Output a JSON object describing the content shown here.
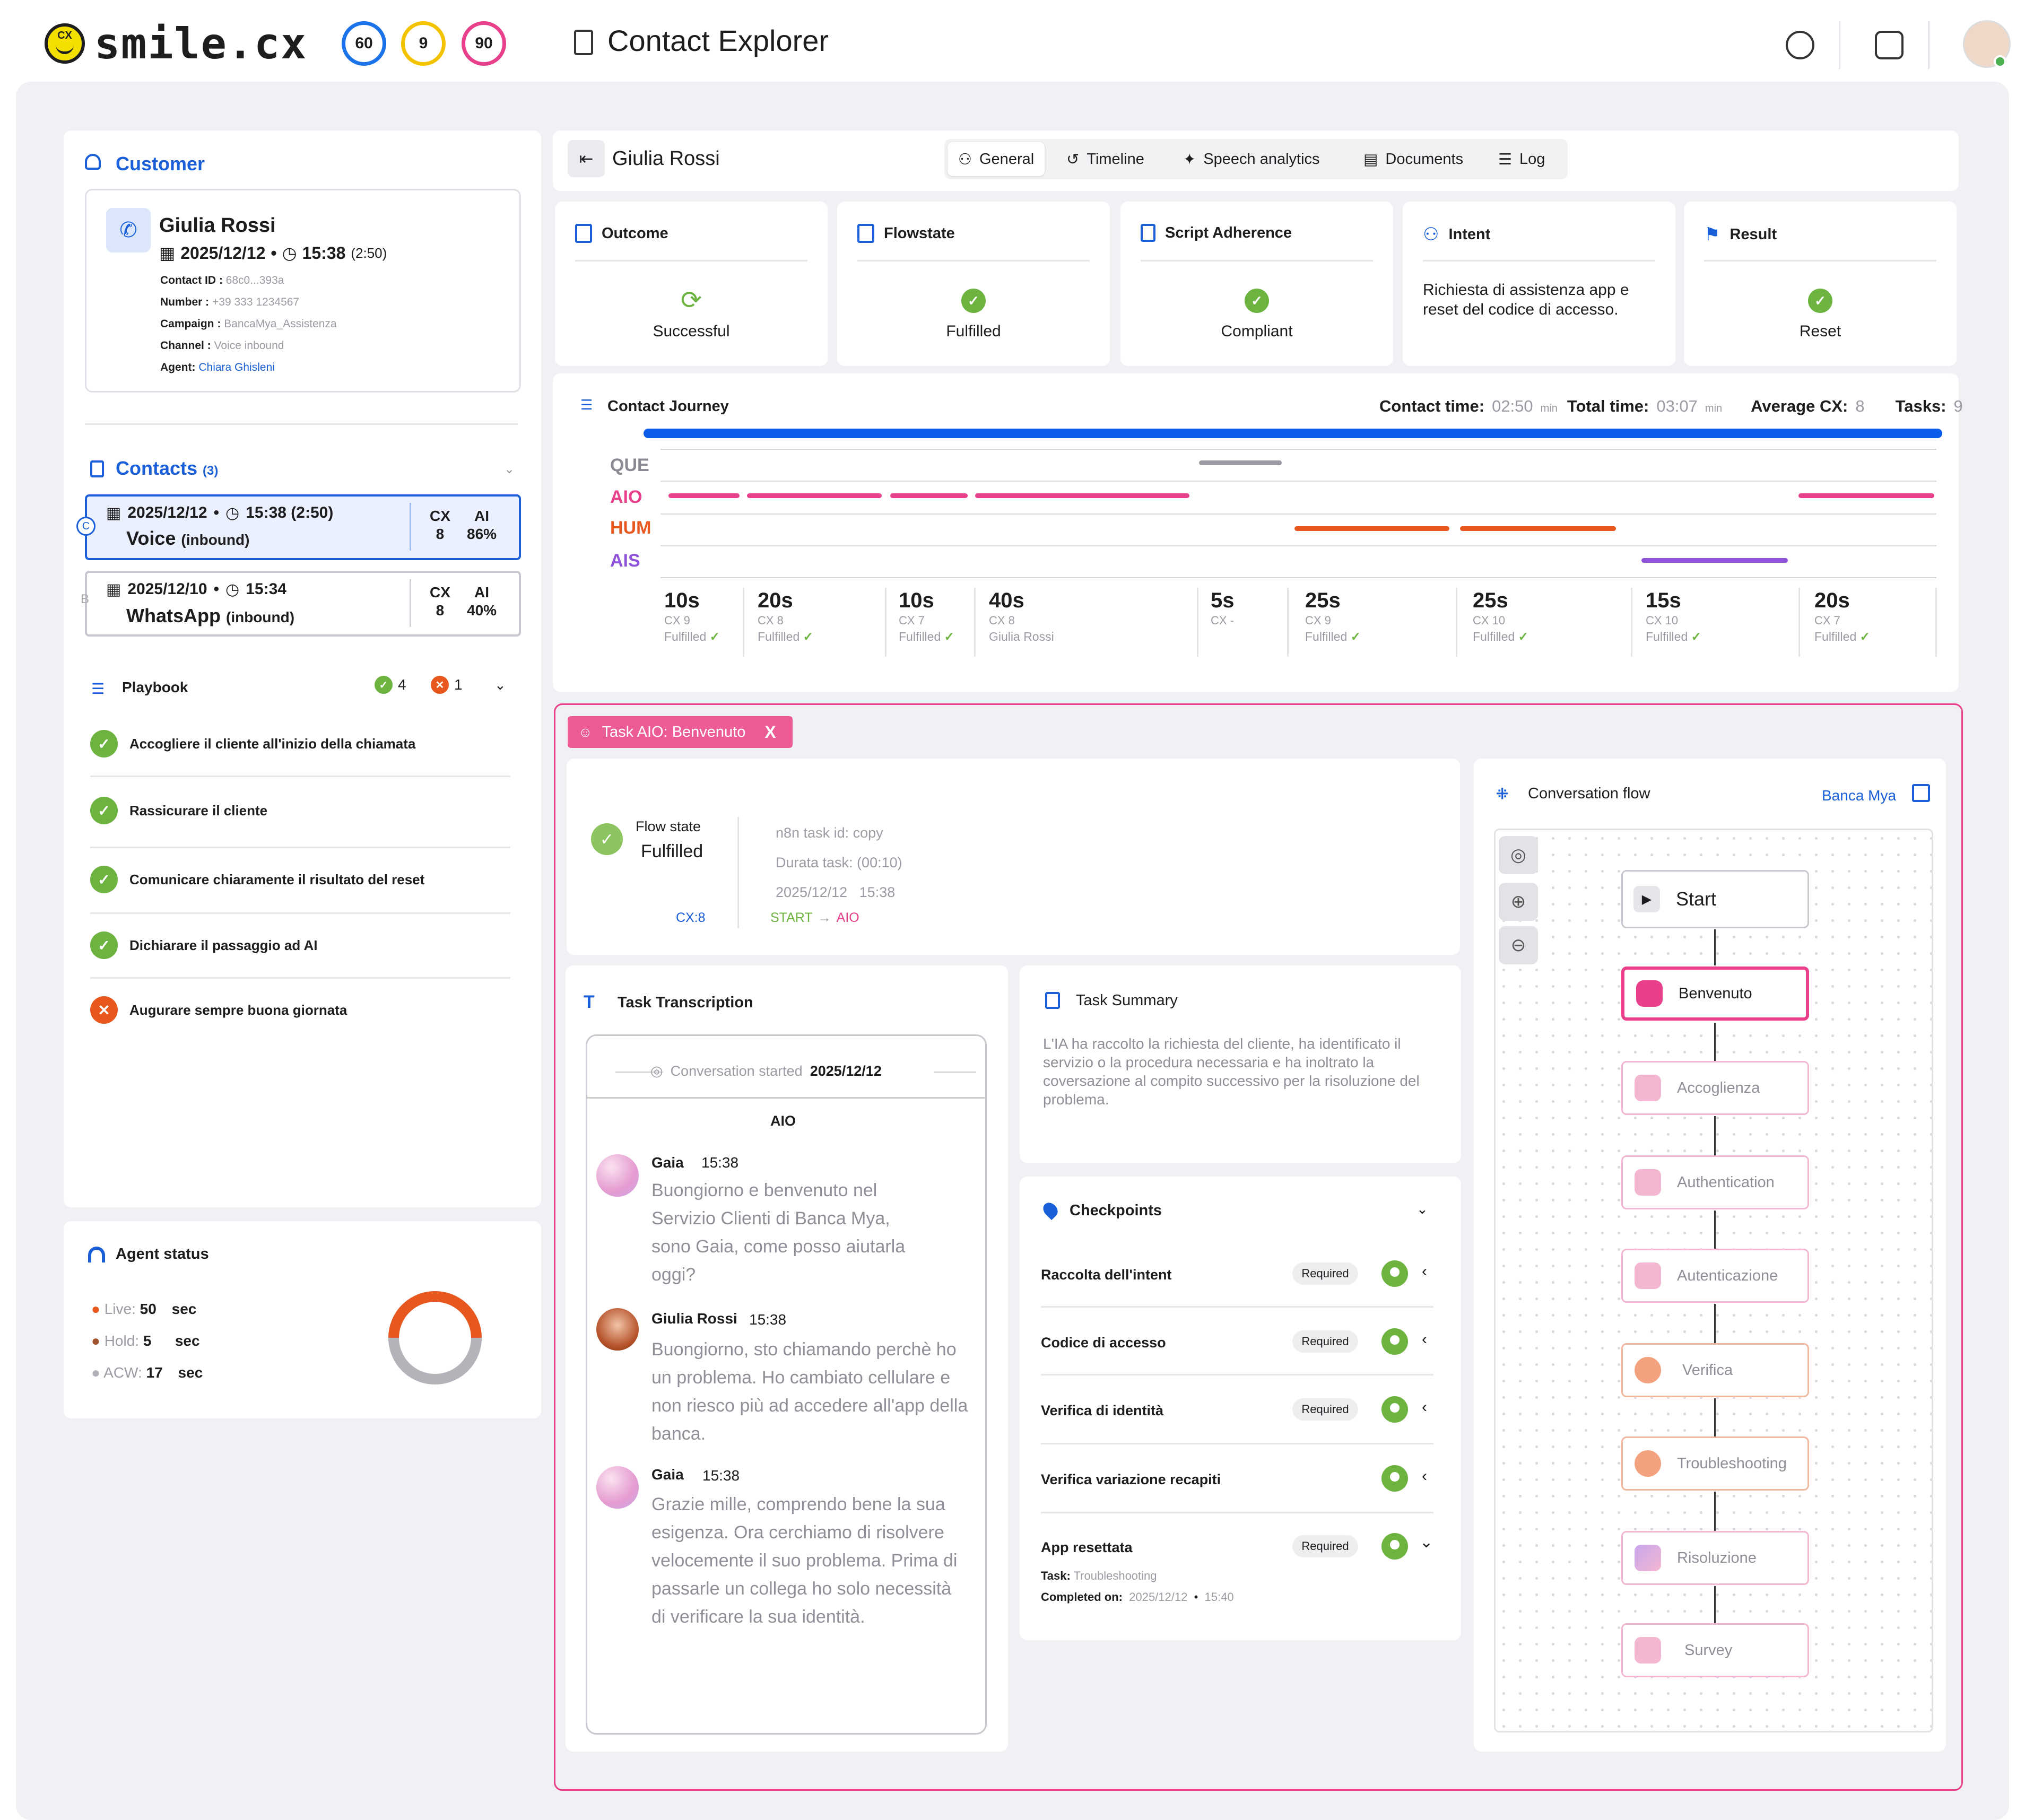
{
  "app": {
    "logo_cx": "CX",
    "logo_text": "smile.cx",
    "score_rings": [
      {
        "value": "60",
        "color": "#1a73e8"
      },
      {
        "value": "9",
        "color": "#f4c300"
      },
      {
        "value": "90",
        "color": "#e8408a"
      }
    ],
    "page_title": "Contact Explorer"
  },
  "customer": {
    "section_title": "Customer",
    "name": "Giulia Rossi",
    "date": "2025/12/12",
    "time": "15:38",
    "duration": "(2:50)",
    "fields": [
      {
        "label": "Contact ID :",
        "value": "68c0...393a",
        "link": false
      },
      {
        "label": "Number :",
        "value": "+39 333 1234567",
        "link": false
      },
      {
        "label": "Campaign :",
        "value": "BancaMya_Assistenza",
        "link": false
      },
      {
        "label": "Channel :",
        "value": "Voice inbound",
        "link": false
      },
      {
        "label": "Agent:",
        "value": "Chiara Ghisleni",
        "link": true
      }
    ]
  },
  "contacts": {
    "title": "Contacts",
    "count": "(3)",
    "items": [
      {
        "date": "2025/12/12",
        "time": "15:38 (2:50)",
        "channel": "Voice",
        "direction": "(inbound)",
        "cx_label": "CX",
        "cx": "8",
        "ai_label": "AI",
        "ai": "86%",
        "side_label": "C",
        "selected": true
      },
      {
        "date": "2025/12/10",
        "time": "15:34",
        "channel": "WhatsApp",
        "direction": "(inbound)",
        "cx_label": "CX",
        "cx": "8",
        "ai_label": "AI",
        "ai": "40%",
        "side_label": "B",
        "selected": false
      }
    ]
  },
  "playbook": {
    "title": "Playbook",
    "pass_count": "4",
    "fail_count": "1",
    "items": [
      {
        "text": "Accogliere il cliente all'inizio della chiamata",
        "status": "pass"
      },
      {
        "text": "Rassicurare il cliente",
        "status": "pass"
      },
      {
        "text": "Comunicare chiaramente il risultato del reset",
        "status": "pass"
      },
      {
        "text": "Dichiarare il passaggio ad AI",
        "status": "pass"
      },
      {
        "text": "Augurare sempre buona giornata",
        "status": "fail"
      }
    ]
  },
  "agent_status": {
    "title": "Agent status",
    "rows": [
      {
        "label": "Live:",
        "value": "50",
        "unit": "sec",
        "color": "#e8581e"
      },
      {
        "label": "Hold:",
        "value": "5",
        "unit": "sec",
        "color": "#a0522d"
      },
      {
        "label": "ACW:",
        "value": "17",
        "unit": "sec",
        "color": "#b0b0b8"
      }
    ]
  },
  "header": {
    "contact_name": "Giulia Rossi",
    "tabs": [
      {
        "label": "General",
        "icon": "person-icon",
        "active": true
      },
      {
        "label": "Timeline",
        "icon": "history-icon",
        "active": false
      },
      {
        "label": "Speech analytics",
        "icon": "sparkle-icon",
        "active": false
      },
      {
        "label": "Documents",
        "icon": "document-icon",
        "active": false
      },
      {
        "label": "Log",
        "icon": "log-icon",
        "active": false
      }
    ]
  },
  "kpis": [
    {
      "title": "Outcome",
      "value": "Successful",
      "icon": "refresh-icon"
    },
    {
      "title": "Flowstate",
      "value": "Fulfilled",
      "icon": "check-icon"
    },
    {
      "title": "Script Adherence",
      "value": "Compliant",
      "icon": "check-icon"
    },
    {
      "title": "Intent",
      "value": "Richiesta di assistenza app e reset del codice di accesso.",
      "icon": ""
    },
    {
      "title": "Result",
      "value": "Reset",
      "icon": "check-icon"
    }
  ],
  "journey": {
    "title": "Contact Journey",
    "contact_time_label": "Contact time:",
    "contact_time": "02:50",
    "contact_time_unit": "min",
    "total_time_label": "Total time:",
    "total_time": "03:07",
    "total_time_unit": "min",
    "avg_cx_label": "Average CX:",
    "avg_cx": "8",
    "tasks_label": "Tasks:",
    "tasks": "9",
    "lanes": [
      "QUE",
      "AIO",
      "HUM",
      "AIS"
    ],
    "steps": [
      {
        "duration": "10s",
        "cx": "CX 9",
        "state": "Fulfilled",
        "check": true
      },
      {
        "duration": "20s",
        "cx": "CX 8",
        "state": "Fulfilled",
        "check": true
      },
      {
        "duration": "10s",
        "cx": "CX 7",
        "state": "Fulfilled",
        "check": true
      },
      {
        "duration": "40s",
        "cx": "CX 8",
        "state": "Giulia Rossi",
        "check": false
      },
      {
        "duration": "5s",
        "cx": "CX -",
        "state": "",
        "check": false
      },
      {
        "duration": "25s",
        "cx": "CX 9",
        "state": "Fulfilled",
        "check": true
      },
      {
        "duration": "25s",
        "cx": "CX 10",
        "state": "Fulfilled",
        "check": true
      },
      {
        "duration": "15s",
        "cx": "CX 10",
        "state": "Fulfilled",
        "check": true
      },
      {
        "duration": "20s",
        "cx": "CX 7",
        "state": "Fulfilled",
        "check": true
      }
    ]
  },
  "task": {
    "tag": "Task AIO: Benvenuto",
    "close": "X",
    "flow_state_label": "Flow state",
    "flow_state": "Fulfilled",
    "cx": "CX:8",
    "task_id": "n8n task id: copy",
    "duration": "Durata task: (00:10)",
    "date": "2025/12/12",
    "time": "15:38",
    "path_from": "START",
    "path_arrow": "→",
    "path_to": "AIO"
  },
  "transcription": {
    "title": "Task Transcription",
    "started_label": "Conversation started",
    "started_date": "2025/12/12",
    "bot_label": "AIO",
    "messages": [
      {
        "name": "Gaia",
        "time": "15:38",
        "text": "Buongiorno e benvenuto nel Servizio Clienti di Banca Mya, sono Gaia, come posso aiutarla oggi?"
      },
      {
        "name": "Giulia Rossi",
        "time": "15:38",
        "text": "Buongiorno, sto chiamando perchè ho un problema. Ho cambiato cellulare e non riesco più ad accedere all'app della banca."
      },
      {
        "name": "Gaia",
        "time": "15:38",
        "text": "Grazie mille, comprendo bene la sua esigenza. Ora cerchiamo di risolvere velocemente il suo problema. Prima di passarle un collega ho solo necessità di verificare la sua identità."
      }
    ]
  },
  "summary": {
    "title": "Task Summary",
    "text": "L'IA ha raccolto la richiesta del cliente, ha identificato il servizio o la procedura necessaria e ha inoltrato la coversazione al compito successivo per la risoluzione del problema."
  },
  "checkpoints": {
    "title": "Checkpoints",
    "items": [
      {
        "label": "Raccolta dell'intent",
        "required": "Required",
        "chevron": "‹"
      },
      {
        "label": "Codice di accesso",
        "required": "Required",
        "chevron": "‹"
      },
      {
        "label": "Verifica di identità",
        "required": "Required",
        "chevron": "‹"
      },
      {
        "label": "Verifica variazione recapiti",
        "required": "",
        "chevron": "‹"
      },
      {
        "label": "App resettata",
        "required": "Required",
        "chevron": "⌄"
      }
    ],
    "detail_task_label": "Task:",
    "detail_task": "Troubleshooting",
    "detail_completed_label": "Completed on:",
    "detail_date": "2025/12/12",
    "detail_time": "15:40"
  },
  "flow": {
    "title": "Conversation flow",
    "link": "Banca Mya",
    "start": "Start",
    "nodes": [
      {
        "label": "Benvenuto",
        "kind": "bot",
        "active": true
      },
      {
        "label": "Accoglienza",
        "kind": "bot",
        "active": false
      },
      {
        "label": "Authentication",
        "kind": "bot",
        "active": false
      },
      {
        "label": "Autenticazione",
        "kind": "bot",
        "active": false
      },
      {
        "label": "Verifica",
        "kind": "human",
        "active": false
      },
      {
        "label": "Troubleshooting",
        "kind": "human",
        "active": false
      },
      {
        "label": "Risoluzione",
        "kind": "hybrid",
        "active": false
      },
      {
        "label": "Survey",
        "kind": "bot",
        "active": false
      }
    ]
  }
}
